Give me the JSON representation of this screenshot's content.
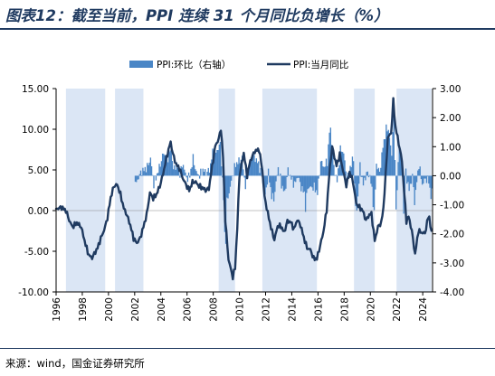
{
  "title": "图表12：截至当前，PPI 连续 31 个月同比负增长（%）",
  "source": "来源：wind，国金证券研究所",
  "colors": {
    "primary": "#1f3a60",
    "bar": "#4a86c6",
    "shade": "#dbe6f5"
  },
  "chart_data": {
    "type": "line+bar",
    "legend": {
      "position": "top",
      "items": [
        "PPI:环比（右轴）",
        "PPI:当月同比"
      ]
    },
    "x_range": [
      "1996-01",
      "2024-09"
    ],
    "x_ticks": [
      "1996",
      "1998",
      "2000",
      "2002",
      "2004",
      "2006",
      "2008",
      "2010",
      "2012",
      "2014",
      "2016",
      "2018",
      "2020",
      "2022",
      "2024"
    ],
    "y_left": {
      "min": -10,
      "max": 15,
      "ticks": [
        "15.00",
        "10.00",
        "5.00",
        "0.00",
        "-5.00",
        "-10.00"
      ]
    },
    "y_right": {
      "min": -4,
      "max": 3,
      "ticks": [
        "3.00",
        "2.00",
        "1.00",
        "0.00",
        "-1.00",
        "-2.00",
        "-3.00",
        "-4.00"
      ]
    },
    "shaded_periods": [
      [
        "1996-10",
        "1999-10"
      ],
      [
        "2000-07",
        "2002-09"
      ],
      [
        "2008-06",
        "2009-09"
      ],
      [
        "2011-10",
        "2015-12"
      ],
      [
        "2018-10",
        "2020-05"
      ],
      [
        "2022-01",
        "2024-09"
      ]
    ],
    "series": [
      {
        "name": "PPI:当月同比",
        "axis": "left",
        "points": [
          [
            "1996-01",
            0.2
          ],
          [
            "1996-06",
            0.4
          ],
          [
            "1996-10",
            0
          ],
          [
            "1997-01",
            -1.2
          ],
          [
            "1997-04",
            -2.0
          ],
          [
            "1997-08",
            -1.5
          ],
          [
            "1997-12",
            -2.0
          ],
          [
            "1998-04",
            -4.2
          ],
          [
            "1998-07",
            -5.5
          ],
          [
            "1998-10",
            -5.8
          ],
          [
            "1998-12",
            -5.3
          ],
          [
            "1999-03",
            -4.6
          ],
          [
            "1999-06",
            -3.4
          ],
          [
            "1999-09",
            -2.4
          ],
          [
            "1999-12",
            -0.9
          ],
          [
            "2000-03",
            1.6
          ],
          [
            "2000-06",
            3.0
          ],
          [
            "2000-09",
            3.2
          ],
          [
            "2000-12",
            2.0
          ],
          [
            "2001-03",
            0.3
          ],
          [
            "2001-06",
            -0.6
          ],
          [
            "2001-09",
            -1.8
          ],
          [
            "2001-12",
            -3.4
          ],
          [
            "2002-03",
            -4.0
          ],
          [
            "2002-06",
            -3.4
          ],
          [
            "2002-09",
            -2.0
          ],
          [
            "2002-12",
            -0.5
          ],
          [
            "2003-03",
            2.2
          ],
          [
            "2003-06",
            1.5
          ],
          [
            "2003-09",
            2.0
          ],
          [
            "2003-12",
            3.0
          ],
          [
            "2004-03",
            4.5
          ],
          [
            "2004-06",
            6.4
          ],
          [
            "2004-09",
            8.0
          ],
          [
            "2004-10",
            8.4
          ],
          [
            "2004-12",
            7.0
          ],
          [
            "2005-03",
            5.7
          ],
          [
            "2005-06",
            5.2
          ],
          [
            "2005-09",
            4.0
          ],
          [
            "2005-12",
            3.2
          ],
          [
            "2006-03",
            2.5
          ],
          [
            "2006-06",
            3.5
          ],
          [
            "2006-09",
            3.5
          ],
          [
            "2006-12",
            3.0
          ],
          [
            "2007-03",
            2.8
          ],
          [
            "2007-06",
            2.5
          ],
          [
            "2007-09",
            2.7
          ],
          [
            "2007-12",
            5.4
          ],
          [
            "2008-03",
            8.0
          ],
          [
            "2008-06",
            8.8
          ],
          [
            "2008-08",
            10.1
          ],
          [
            "2008-10",
            6.6
          ],
          [
            "2008-12",
            -1.1
          ],
          [
            "2009-03",
            -6.0
          ],
          [
            "2009-07",
            -8.2
          ],
          [
            "2009-09",
            -7.0
          ],
          [
            "2009-11",
            -2.1
          ],
          [
            "2010-01",
            4.3
          ],
          [
            "2010-05",
            7.1
          ],
          [
            "2010-08",
            4.3
          ],
          [
            "2010-11",
            6.1
          ],
          [
            "2011-03",
            7.3
          ],
          [
            "2011-07",
            7.5
          ],
          [
            "2011-10",
            5.0
          ],
          [
            "2011-12",
            1.7
          ],
          [
            "2012-03",
            -0.3
          ],
          [
            "2012-06",
            -2.1
          ],
          [
            "2012-09",
            -3.6
          ],
          [
            "2012-12",
            -1.9
          ],
          [
            "2013-03",
            -1.9
          ],
          [
            "2013-06",
            -2.7
          ],
          [
            "2013-09",
            -1.3
          ],
          [
            "2013-12",
            -1.4
          ],
          [
            "2014-03",
            -2.3
          ],
          [
            "2014-06",
            -1.1
          ],
          [
            "2014-09",
            -1.8
          ],
          [
            "2014-12",
            -3.3
          ],
          [
            "2015-03",
            -4.6
          ],
          [
            "2015-06",
            -4.8
          ],
          [
            "2015-09",
            -5.9
          ],
          [
            "2015-12",
            -5.9
          ],
          [
            "2016-03",
            -4.3
          ],
          [
            "2016-06",
            -2.6
          ],
          [
            "2016-09",
            0.1
          ],
          [
            "2016-12",
            5.5
          ],
          [
            "2017-02",
            7.8
          ],
          [
            "2017-06",
            5.5
          ],
          [
            "2017-09",
            6.9
          ],
          [
            "2017-12",
            4.9
          ],
          [
            "2018-03",
            3.1
          ],
          [
            "2018-06",
            4.7
          ],
          [
            "2018-09",
            3.6
          ],
          [
            "2018-12",
            0.9
          ],
          [
            "2019-03",
            0.4
          ],
          [
            "2019-06",
            0
          ],
          [
            "2019-09",
            -1.2
          ],
          [
            "2019-12",
            -0.5
          ],
          [
            "2020-02",
            -0.4
          ],
          [
            "2020-05",
            -3.7
          ],
          [
            "2020-08",
            -2.0
          ],
          [
            "2020-11",
            -1.5
          ],
          [
            "2021-01",
            0.3
          ],
          [
            "2021-03",
            4.4
          ],
          [
            "2021-05",
            9.0
          ],
          [
            "2021-08",
            9.5
          ],
          [
            "2021-10",
            13.5
          ],
          [
            "2021-12",
            10.3
          ],
          [
            "2022-03",
            8.3
          ],
          [
            "2022-06",
            6.1
          ],
          [
            "2022-08",
            2.3
          ],
          [
            "2022-10",
            -1.3
          ],
          [
            "2022-12",
            -0.7
          ],
          [
            "2023-03",
            -2.5
          ],
          [
            "2023-06",
            -5.4
          ],
          [
            "2023-09",
            -2.5
          ],
          [
            "2023-12",
            -2.7
          ],
          [
            "2024-03",
            -2.8
          ],
          [
            "2024-06",
            -0.8
          ],
          [
            "2024-07",
            -0.8
          ],
          [
            "2024-08",
            -1.8
          ],
          [
            "2024-09",
            -2.8
          ]
        ]
      },
      {
        "name": "PPI:环比（右轴）",
        "axis": "right",
        "points": [
          [
            "2002-01",
            -0.3
          ],
          [
            "2002-06",
            0.1
          ],
          [
            "2002-12",
            0.3
          ],
          [
            "2003-03",
            0.6
          ],
          [
            "2003-06",
            -0.3
          ],
          [
            "2003-12",
            0.4
          ],
          [
            "2004-03",
            0.8
          ],
          [
            "2004-06",
            0.5
          ],
          [
            "2004-10",
            1.0
          ],
          [
            "2004-12",
            0.2
          ],
          [
            "2005-03",
            0.4
          ],
          [
            "2005-06",
            0.1
          ],
          [
            "2005-09",
            0.4
          ],
          [
            "2005-12",
            -0.1
          ],
          [
            "2006-03",
            0
          ],
          [
            "2006-06",
            0.6
          ],
          [
            "2006-09",
            0.1
          ],
          [
            "2006-12",
            0
          ],
          [
            "2007-03",
            0.2
          ],
          [
            "2007-06",
            0.1
          ],
          [
            "2007-09",
            0.2
          ],
          [
            "2007-12",
            0.8
          ],
          [
            "2008-03",
            0.8
          ],
          [
            "2008-07",
            1.1
          ],
          [
            "2008-10",
            -0.8
          ],
          [
            "2008-11",
            -2.0
          ],
          [
            "2008-12",
            -2.2
          ],
          [
            "2009-01",
            -0.9
          ],
          [
            "2009-04",
            -0.4
          ],
          [
            "2009-06",
            0
          ],
          [
            "2009-09",
            0.4
          ],
          [
            "2009-12",
            0.5
          ],
          [
            "2010-03",
            0.6
          ],
          [
            "2010-06",
            -0.4
          ],
          [
            "2010-09",
            0.3
          ],
          [
            "2010-12",
            0.7
          ],
          [
            "2011-03",
            0.6
          ],
          [
            "2011-06",
            0.4
          ],
          [
            "2011-09",
            0
          ],
          [
            "2011-12",
            -0.7
          ],
          [
            "2012-03",
            0.1
          ],
          [
            "2012-06",
            -0.7
          ],
          [
            "2012-08",
            -0.8
          ],
          [
            "2012-12",
            0.3
          ],
          [
            "2013-03",
            -0.3
          ],
          [
            "2013-06",
            -0.6
          ],
          [
            "2013-09",
            0.2
          ],
          [
            "2013-12",
            -0.1
          ],
          [
            "2014-03",
            -0.3
          ],
          [
            "2014-06",
            0
          ],
          [
            "2014-09",
            -0.4
          ],
          [
            "2014-12",
            -0.6
          ],
          [
            "2015-01",
            -1.1
          ],
          [
            "2015-03",
            -0.4
          ],
          [
            "2015-06",
            -0.4
          ],
          [
            "2015-09",
            -0.4
          ],
          [
            "2015-12",
            -0.6
          ],
          [
            "2016-03",
            0.5
          ],
          [
            "2016-06",
            0.3
          ],
          [
            "2016-09",
            0.5
          ],
          [
            "2016-11",
            1.5
          ],
          [
            "2016-12",
            1.6
          ],
          [
            "2017-03",
            0.3
          ],
          [
            "2017-06",
            -0.2
          ],
          [
            "2017-09",
            0.9
          ],
          [
            "2017-12",
            0.8
          ],
          [
            "2018-03",
            -0.2
          ],
          [
            "2018-06",
            0.3
          ],
          [
            "2018-09",
            0.6
          ],
          [
            "2018-11",
            -1.1
          ],
          [
            "2018-12",
            -1.2
          ],
          [
            "2019-03",
            0.3
          ],
          [
            "2019-06",
            -0.3
          ],
          [
            "2019-09",
            0.1
          ],
          [
            "2019-12",
            0
          ],
          [
            "2020-02",
            -0.5
          ],
          [
            "2020-04",
            -1.3
          ],
          [
            "2020-06",
            0.4
          ],
          [
            "2020-09",
            0.1
          ],
          [
            "2020-12",
            1.0
          ],
          [
            "2021-01",
            1.2
          ],
          [
            "2021-03",
            1.6
          ],
          [
            "2021-05",
            1.6
          ],
          [
            "2021-08",
            0.7
          ],
          [
            "2021-10",
            2.5
          ],
          [
            "2021-12",
            -1.2
          ],
          [
            "2022-03",
            1.1
          ],
          [
            "2022-06",
            0
          ],
          [
            "2022-07",
            -1.3
          ],
          [
            "2022-09",
            0.1
          ],
          [
            "2022-12",
            -0.5
          ],
          [
            "2023-03",
            0
          ],
          [
            "2023-05",
            -0.9
          ],
          [
            "2023-07",
            -0.2
          ],
          [
            "2023-09",
            0.4
          ],
          [
            "2023-12",
            -0.3
          ],
          [
            "2024-03",
            -0.1
          ],
          [
            "2024-06",
            -0.2
          ],
          [
            "2024-08",
            -0.7
          ],
          [
            "2024-09",
            -0.6
          ]
        ]
      }
    ]
  }
}
